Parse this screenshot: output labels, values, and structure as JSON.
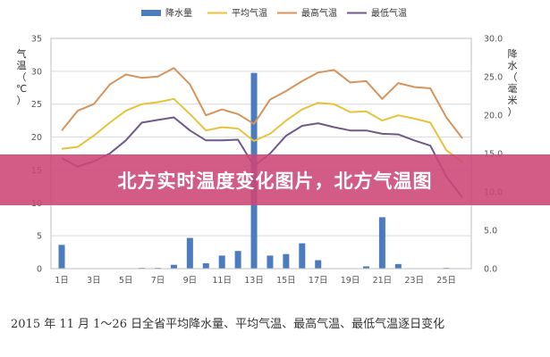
{
  "banner": {
    "text": "北方实时温度变化图片，北方气温图"
  },
  "caption": {
    "text": "2015 年 11 月 1～26 日全省平均降水量、平均气温、最高气温、最低气温逐日变化"
  },
  "colors": {
    "precip": "#4a7cbf",
    "avg_temp": "#e8c23a",
    "max_temp": "#d8935a",
    "min_temp": "#6e5a8a",
    "grid": "#d9d9d9",
    "axis_text": "#555555",
    "banner_bg": "#cd4676"
  },
  "chart_data": {
    "type": "bar+line",
    "x": [
      1,
      2,
      3,
      4,
      5,
      6,
      7,
      8,
      9,
      10,
      11,
      12,
      13,
      14,
      15,
      16,
      17,
      18,
      19,
      20,
      21,
      22,
      23,
      24,
      25,
      26
    ],
    "x_tick_labels": [
      "1日",
      "3日",
      "5日",
      "7日",
      "9日",
      "11日",
      "13日",
      "15日",
      "17日",
      "19日",
      "21日",
      "23日",
      "25日"
    ],
    "x_tick_positions": [
      1,
      3,
      5,
      7,
      9,
      11,
      13,
      15,
      17,
      19,
      21,
      23,
      25
    ],
    "ylabel_left": "气温（℃）",
    "ylabel_right": "降水（毫米）",
    "ylim_left": [
      0,
      35
    ],
    "ylim_right": [
      0,
      30
    ],
    "yticks_left": [
      "0",
      "5",
      "10",
      "15",
      "20",
      "25",
      "30",
      "35"
    ],
    "yticks_right": [
      "0.0",
      "5.0",
      "10.0",
      "15.0",
      "20.0",
      "25.0",
      "30.0"
    ],
    "grid": true,
    "legend_position": "top",
    "series": [
      {
        "name": "降水量",
        "kind": "bar",
        "axis": "right",
        "values": [
          3.1,
          0,
          0,
          0,
          0,
          0.1,
          0.1,
          0.5,
          4.0,
          0.7,
          1.7,
          2.3,
          25.5,
          1.7,
          1.9,
          3.3,
          1.1,
          0,
          0,
          0.3,
          6.7,
          0.6,
          0,
          0,
          0.1,
          0
        ]
      },
      {
        "name": "平均气温",
        "kind": "line",
        "axis": "left",
        "values": [
          18.2,
          18.5,
          20.2,
          22.2,
          24.0,
          25.0,
          25.3,
          25.8,
          23.5,
          21.0,
          21.5,
          21.3,
          19.4,
          20.5,
          22.5,
          24.2,
          25.2,
          25.0,
          23.8,
          23.9,
          22.5,
          23.3,
          22.8,
          22.2,
          18.0,
          16.2
        ]
      },
      {
        "name": "最高气温",
        "kind": "line",
        "axis": "left",
        "values": [
          21.0,
          24.0,
          25.0,
          28.0,
          29.5,
          29.0,
          29.2,
          30.5,
          28.0,
          23.3,
          24.2,
          23.5,
          22.0,
          25.7,
          27.0,
          28.5,
          29.8,
          30.2,
          28.3,
          28.5,
          25.8,
          28.2,
          27.6,
          27.4,
          23.0,
          19.8
        ]
      },
      {
        "name": "最低气温",
        "kind": "line",
        "axis": "left",
        "values": [
          16.8,
          15.5,
          16.3,
          17.5,
          19.5,
          22.2,
          22.6,
          23.0,
          21.0,
          19.5,
          19.5,
          19.6,
          15.6,
          17.5,
          20.2,
          21.7,
          22.1,
          21.5,
          21.0,
          21.0,
          20.5,
          20.4,
          19.5,
          18.7,
          14.0,
          10.8
        ]
      }
    ]
  }
}
